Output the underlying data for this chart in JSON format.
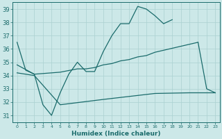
{
  "xlabel": "Humidex (Indice chaleur)",
  "bg_color": "#cce8e8",
  "grid_color": "#aad0d0",
  "line_color": "#1a6b6b",
  "xlim": [
    -0.5,
    23.5
  ],
  "ylim": [
    30.5,
    39.5
  ],
  "yticks": [
    31,
    32,
    33,
    34,
    35,
    36,
    37,
    38,
    39
  ],
  "xticks": [
    0,
    1,
    2,
    3,
    4,
    5,
    6,
    7,
    8,
    9,
    10,
    11,
    12,
    13,
    14,
    15,
    16,
    17,
    18,
    19,
    20,
    21,
    22,
    23
  ],
  "line1_y": [
    36.5,
    34.4,
    34.1,
    31.8,
    31.0,
    32.7,
    34.1,
    35.0,
    34.3,
    34.3,
    35.8,
    37.0,
    37.9,
    37.9,
    39.2,
    39.0,
    38.5,
    37.9,
    38.2,
    null,
    null,
    36.5,
    33.0,
    32.7
  ],
  "line2_x": [
    0,
    2,
    5,
    7,
    8,
    9,
    10,
    11,
    12,
    13,
    14,
    15,
    16,
    21
  ],
  "line2_y": [
    34.8,
    34.1,
    34.25,
    34.5,
    34.5,
    34.6,
    34.8,
    34.9,
    35.1,
    35.2,
    35.4,
    35.5,
    35.75,
    36.5
  ],
  "line3_x": [
    0,
    2,
    5,
    10,
    12,
    14,
    16,
    20,
    21,
    22,
    23
  ],
  "line3_y": [
    34.2,
    34.0,
    31.8,
    32.2,
    32.35,
    32.5,
    32.65,
    32.7,
    32.7,
    32.7,
    32.7
  ]
}
